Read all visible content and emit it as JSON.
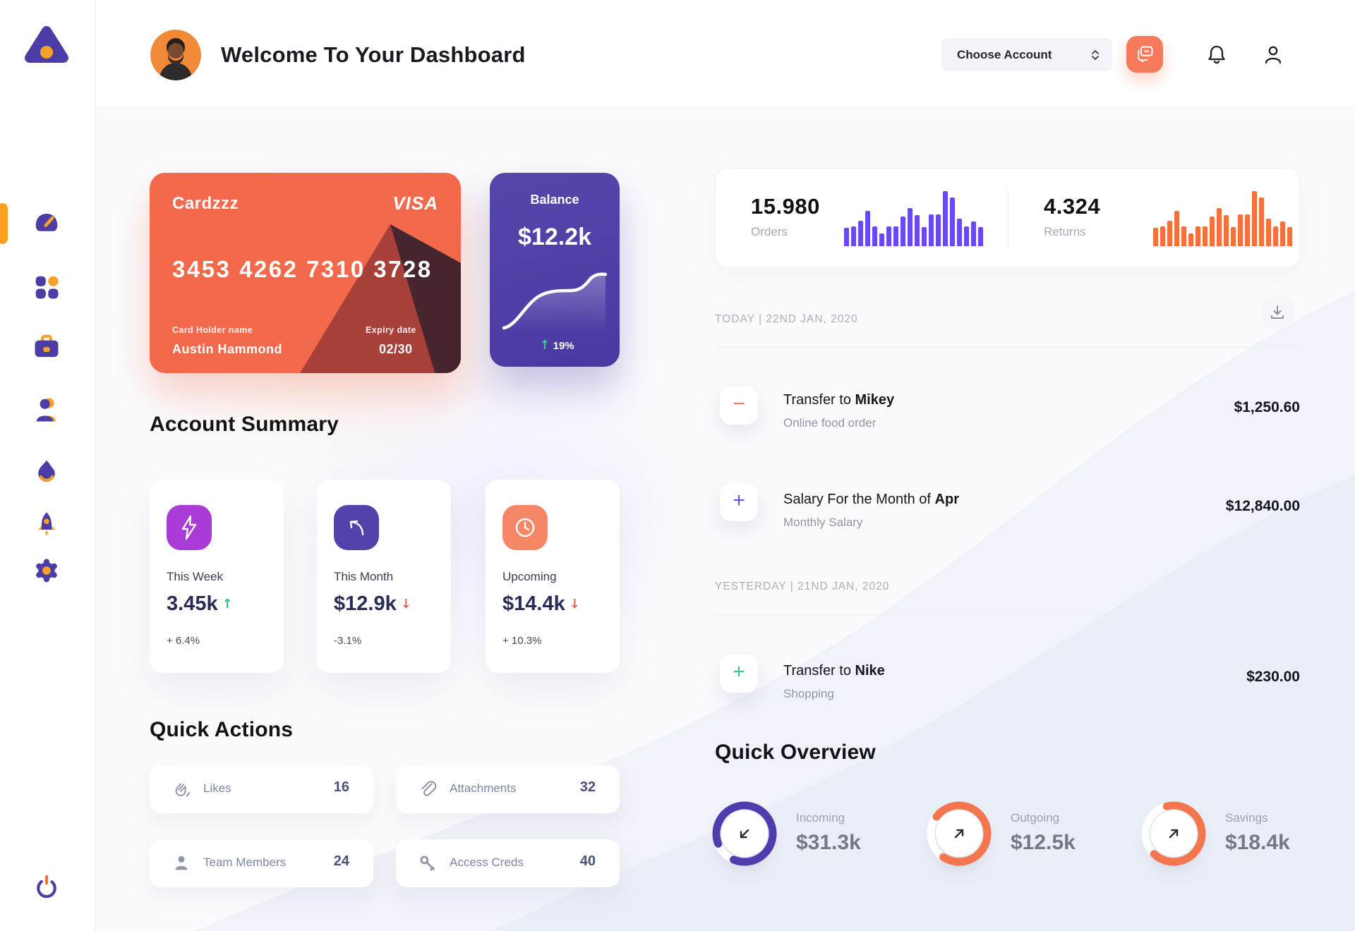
{
  "header": {
    "title": "Welcome To Your Dashboard",
    "account_selector_label": "Choose Account"
  },
  "sidebar": {
    "items": [
      {
        "icon": "speedometer",
        "active": true
      },
      {
        "icon": "grid",
        "active": false
      },
      {
        "icon": "briefcase",
        "active": false
      },
      {
        "icon": "user",
        "active": false
      },
      {
        "icon": "flame",
        "active": false
      },
      {
        "icon": "rocket",
        "active": false
      },
      {
        "icon": "gear",
        "active": false
      }
    ],
    "footer_icon": "power"
  },
  "credit_card": {
    "name": "Cardzzz",
    "brand": "VISA",
    "number": "3453 4262 7310 3728",
    "holder_label": "Card Holder name",
    "holder": "Austin Hammond",
    "expiry_label": "Expiry date",
    "expiry": "02/30"
  },
  "balance": {
    "title": "Balance",
    "value": "$12.2k",
    "arrow": "↑",
    "arrow_color": "#3DC98E",
    "change": "19%"
  },
  "account_summary": {
    "title": "Account Summary",
    "cards": [
      {
        "label": "This Week",
        "value": "3.45k",
        "trend_arrow": "↑",
        "trend_color": "#2EBD8C",
        "delta": "+ 6.4%",
        "icon": "lightning",
        "icon_color": "#A93BD7"
      },
      {
        "label": "This Month",
        "value": "$12.9k",
        "trend_arrow": "↓",
        "trend_color": "#F0634C",
        "delta": "-3.1%",
        "icon": "arrow-up-left",
        "icon_color": "#5342A9"
      },
      {
        "label": "Upcoming",
        "value": "$14.4k",
        "trend_arrow": "↓",
        "trend_color": "#F0634C",
        "delta": "+ 10.3%",
        "icon": "clock",
        "icon_color": "#F58766"
      }
    ]
  },
  "quick_actions": {
    "title": "Quick Actions",
    "items": [
      {
        "label": "Likes",
        "count": "16",
        "icon": "clap"
      },
      {
        "label": "Attachments",
        "count": "32",
        "icon": "paperclip"
      },
      {
        "label": "Team Members",
        "count": "24",
        "icon": "person"
      },
      {
        "label": "Access Creds",
        "count": "40",
        "icon": "key"
      }
    ]
  },
  "stats": {
    "orders": {
      "value": "15.980",
      "label": "Orders",
      "color": "#6A48F2",
      "bars": [
        33,
        36,
        46,
        64,
        36,
        23,
        36,
        36,
        54,
        69,
        57,
        34,
        58,
        58,
        100,
        89,
        50,
        36,
        45,
        34
      ]
    },
    "returns": {
      "value": "4.324",
      "label": "Returns",
      "color": "#F4713D",
      "bars": [
        33,
        36,
        46,
        64,
        36,
        23,
        36,
        36,
        54,
        69,
        57,
        34,
        58,
        58,
        100,
        89,
        50,
        36,
        45,
        34
      ]
    }
  },
  "transactions": {
    "sections": [
      {
        "date_label": "TODAY | 22ND JAN, 2020",
        "rows": [
          {
            "sign": "−",
            "sign_color": "#F27A56",
            "title": "Transfer to ",
            "title_bold": "Mikey",
            "subtitle": "Online food order",
            "amount": "$1,250.60"
          },
          {
            "sign": "+",
            "sign_color": "#6455E8",
            "title": "Salary For the Month of ",
            "title_bold": "Apr",
            "subtitle": "Monthly Salary",
            "amount": "$12,840.00"
          }
        ]
      },
      {
        "date_label": "YESTERDAY | 21ND JAN, 2020",
        "rows": [
          {
            "sign": "+",
            "sign_color": "#3BC69B",
            "title": "Transfer to ",
            "title_bold": "Nike",
            "subtitle": "Shopping",
            "amount": "$230.00"
          }
        ]
      }
    ]
  },
  "quick_overview": {
    "title": "Quick Overview",
    "items": [
      {
        "label": "Incoming",
        "value": "$31.3k",
        "percent": 87,
        "color": "#4F3CAD",
        "arrow": "down-left"
      },
      {
        "label": "Outgoing",
        "value": "$12.5k",
        "percent": 74,
        "color": "#F4764F",
        "arrow": "up-right"
      },
      {
        "label": "Savings",
        "value": "$18.4k",
        "percent": 66,
        "color": "#F4764F",
        "arrow": "up-right"
      }
    ]
  }
}
